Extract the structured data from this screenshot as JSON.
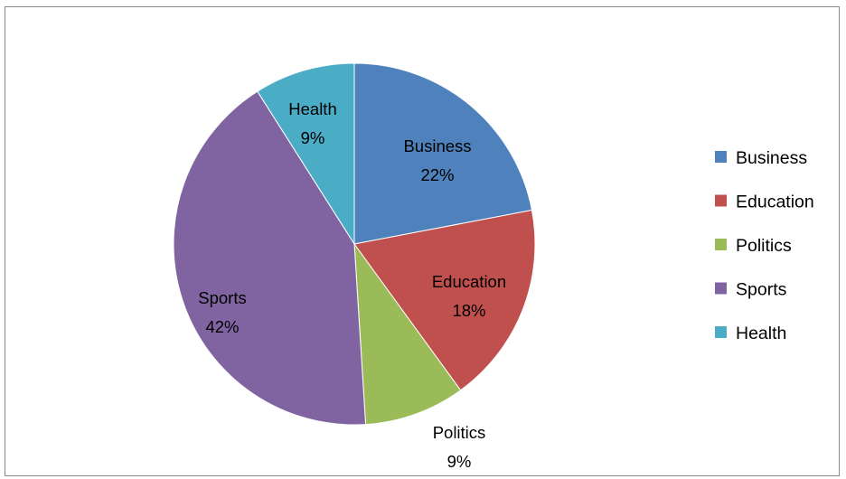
{
  "chart_data": {
    "type": "pie",
    "title": "",
    "slices": [
      {
        "label": "Business",
        "value": 22,
        "display": "22%",
        "color": "#4f81bd"
      },
      {
        "label": "Education",
        "value": 18,
        "display": "18%",
        "color": "#c0504d"
      },
      {
        "label": "Politics",
        "value": 9,
        "display": "9%",
        "color": "#9bbb59"
      },
      {
        "label": "Sports",
        "value": 42,
        "display": "42%",
        "color": "#8064a2"
      },
      {
        "label": "Health",
        "value": 9,
        "display": "9%",
        "color": "#4bacc6"
      }
    ],
    "legend": {
      "placement": "right",
      "items": [
        "Business",
        "Education",
        "Politics",
        "Sports",
        "Health"
      ]
    }
  }
}
